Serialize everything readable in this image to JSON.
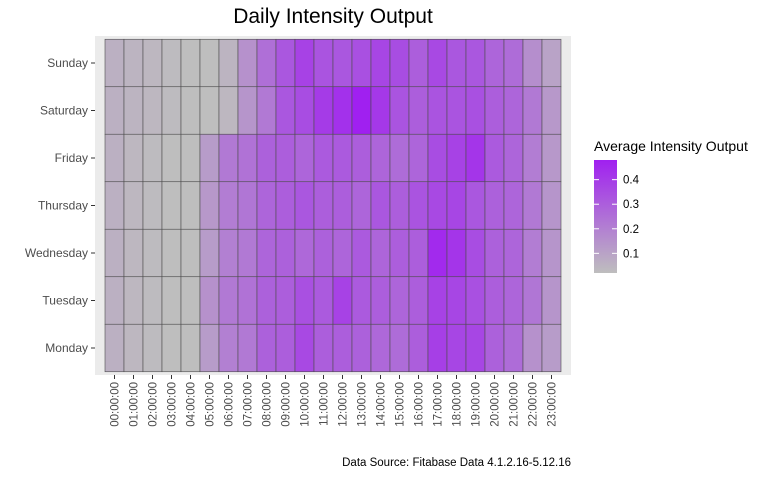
{
  "chart_data": {
    "type": "heatmap",
    "title": "Daily Intensity Output",
    "caption": "Data Source: Fitabase Data 4.1.2.16-5.12.16",
    "xlabel": "",
    "ylabel": "",
    "x_categories": [
      "00:00:00",
      "01:00:00",
      "02:00:00",
      "03:00:00",
      "04:00:00",
      "05:00:00",
      "06:00:00",
      "07:00:00",
      "08:00:00",
      "09:00:00",
      "10:00:00",
      "11:00:00",
      "12:00:00",
      "13:00:00",
      "14:00:00",
      "15:00:00",
      "16:00:00",
      "17:00:00",
      "18:00:00",
      "19:00:00",
      "20:00:00",
      "21:00:00",
      "22:00:00",
      "23:00:00"
    ],
    "y_categories": [
      "Sunday",
      "Saturday",
      "Friday",
      "Thursday",
      "Wednesday",
      "Tuesday",
      "Monday"
    ],
    "values": [
      [
        0.06,
        0.05,
        0.04,
        0.03,
        0.02,
        0.02,
        0.05,
        0.15,
        0.25,
        0.32,
        0.38,
        0.33,
        0.32,
        0.34,
        0.37,
        0.35,
        0.3,
        0.36,
        0.32,
        0.32,
        0.28,
        0.26,
        0.16,
        0.1
      ],
      [
        0.06,
        0.05,
        0.04,
        0.03,
        0.02,
        0.02,
        0.04,
        0.14,
        0.22,
        0.32,
        0.35,
        0.4,
        0.43,
        0.48,
        0.41,
        0.33,
        0.3,
        0.33,
        0.33,
        0.34,
        0.3,
        0.28,
        0.22,
        0.13
      ],
      [
        0.06,
        0.04,
        0.03,
        0.02,
        0.02,
        0.12,
        0.22,
        0.24,
        0.29,
        0.3,
        0.28,
        0.31,
        0.31,
        0.3,
        0.28,
        0.26,
        0.28,
        0.35,
        0.38,
        0.42,
        0.31,
        0.28,
        0.21,
        0.13
      ],
      [
        0.06,
        0.04,
        0.03,
        0.02,
        0.02,
        0.13,
        0.21,
        0.23,
        0.28,
        0.3,
        0.32,
        0.3,
        0.3,
        0.28,
        0.32,
        0.3,
        0.33,
        0.36,
        0.37,
        0.32,
        0.29,
        0.28,
        0.22,
        0.14
      ],
      [
        0.06,
        0.04,
        0.03,
        0.02,
        0.02,
        0.12,
        0.2,
        0.22,
        0.28,
        0.29,
        0.27,
        0.29,
        0.28,
        0.31,
        0.28,
        0.3,
        0.3,
        0.45,
        0.42,
        0.35,
        0.29,
        0.28,
        0.21,
        0.14
      ],
      [
        0.06,
        0.04,
        0.03,
        0.02,
        0.02,
        0.15,
        0.22,
        0.24,
        0.29,
        0.3,
        0.34,
        0.31,
        0.38,
        0.31,
        0.3,
        0.28,
        0.3,
        0.38,
        0.37,
        0.34,
        0.3,
        0.28,
        0.23,
        0.14
      ],
      [
        0.06,
        0.04,
        0.03,
        0.02,
        0.02,
        0.12,
        0.2,
        0.22,
        0.29,
        0.3,
        0.36,
        0.3,
        0.3,
        0.29,
        0.27,
        0.26,
        0.3,
        0.39,
        0.37,
        0.37,
        0.29,
        0.26,
        0.15,
        0.12
      ]
    ],
    "legend": {
      "title": "Average Intensity Output",
      "breaks": [
        0.1,
        0.2,
        0.3,
        0.4
      ],
      "tick_labels": [
        "0.1",
        "0.2",
        "0.3",
        "0.4"
      ],
      "limits": [
        0.02,
        0.48
      ],
      "placement": "right"
    },
    "colors": {
      "low": "#bebebe",
      "high": "#a020f0",
      "panel_background": "#ebebeb",
      "tile_border": "#4d4d4d",
      "tick_text": "#4d4d4d"
    },
    "grid": false
  }
}
